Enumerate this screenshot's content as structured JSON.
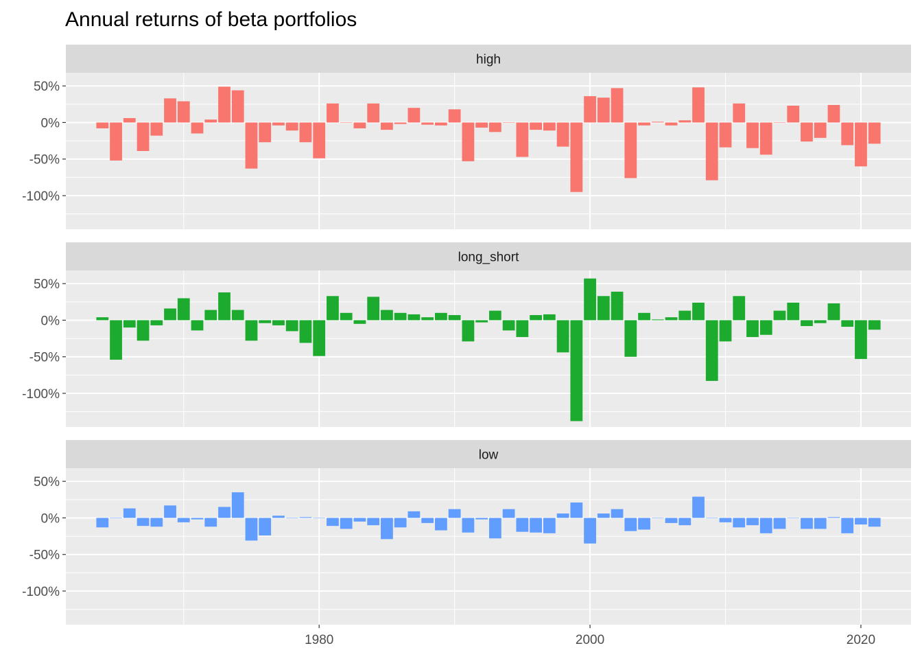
{
  "chart_data": {
    "type": "bar",
    "title": "Annual returns of beta portfolios",
    "xlabel": "",
    "ylabel": "",
    "facet_layout": "vertical",
    "grid": true,
    "legend": "none",
    "xlim": [
      1961.3,
      2023.7
    ],
    "ylim": [
      -1.46,
      0.68
    ],
    "x_ticks": [
      1980,
      2000,
      2020
    ],
    "x_tick_labels": [
      "1980",
      "2000",
      "2020"
    ],
    "y_ticks": [
      0.5,
      0,
      -0.5,
      -1.0
    ],
    "y_tick_labels": [
      "50%",
      "0%",
      "-50%",
      "-100%"
    ],
    "x": [
      1964,
      1965,
      1966,
      1967,
      1968,
      1969,
      1970,
      1971,
      1972,
      1973,
      1974,
      1975,
      1976,
      1977,
      1978,
      1979,
      1980,
      1981,
      1982,
      1983,
      1984,
      1985,
      1986,
      1987,
      1988,
      1989,
      1990,
      1991,
      1992,
      1993,
      1994,
      1995,
      1996,
      1997,
      1998,
      1999,
      2000,
      2001,
      2002,
      2003,
      2004,
      2005,
      2006,
      2007,
      2008,
      2009,
      2010,
      2011,
      2012,
      2013,
      2014,
      2015,
      2016,
      2017,
      2018,
      2019,
      2020,
      2021
    ],
    "series": [
      {
        "name": "high",
        "color": "#F8766D",
        "values": [
          -0.08,
          -0.52,
          0.06,
          -0.39,
          -0.18,
          0.33,
          0.29,
          -0.15,
          0.04,
          0.49,
          0.44,
          -0.63,
          -0.27,
          -0.04,
          -0.11,
          -0.27,
          -0.49,
          0.26,
          0.0,
          -0.08,
          0.26,
          -0.1,
          -0.02,
          0.2,
          -0.03,
          -0.04,
          0.18,
          -0.53,
          -0.07,
          -0.13,
          0.0,
          -0.47,
          -0.1,
          -0.11,
          -0.33,
          -0.95,
          0.36,
          0.34,
          0.47,
          -0.76,
          -0.04,
          0.01,
          -0.04,
          0.03,
          0.48,
          -0.79,
          -0.34,
          0.26,
          -0.35,
          -0.44,
          0.0,
          0.23,
          -0.26,
          -0.21,
          0.24,
          -0.31,
          -0.6,
          -0.29
        ]
      },
      {
        "name": "long_short",
        "color": "#1CAB2E",
        "values": [
          0.04,
          -0.54,
          -0.1,
          -0.28,
          -0.07,
          0.16,
          0.3,
          -0.14,
          0.14,
          0.38,
          0.14,
          -0.28,
          -0.04,
          -0.07,
          -0.15,
          -0.31,
          -0.49,
          0.33,
          0.1,
          -0.05,
          0.32,
          0.14,
          0.1,
          0.08,
          0.04,
          0.1,
          0.07,
          -0.29,
          -0.03,
          0.13,
          -0.14,
          -0.23,
          0.07,
          0.08,
          -0.44,
          -1.38,
          0.57,
          0.33,
          0.39,
          -0.5,
          0.1,
          0.01,
          0.04,
          0.13,
          0.24,
          -0.83,
          -0.29,
          0.33,
          -0.23,
          -0.2,
          0.13,
          0.24,
          -0.08,
          -0.04,
          0.23,
          -0.09,
          -0.53,
          -0.13
        ]
      },
      {
        "name": "low",
        "color": "#619CFF",
        "values": [
          -0.13,
          0.0,
          0.13,
          -0.11,
          -0.12,
          0.17,
          -0.06,
          -0.02,
          -0.12,
          0.15,
          0.35,
          -0.31,
          -0.24,
          0.03,
          0.0,
          0.01,
          0.0,
          -0.11,
          -0.15,
          -0.05,
          -0.1,
          -0.29,
          -0.13,
          0.09,
          -0.07,
          -0.17,
          0.12,
          -0.2,
          -0.02,
          -0.28,
          0.12,
          -0.19,
          -0.2,
          -0.21,
          0.06,
          0.21,
          -0.35,
          0.06,
          0.12,
          -0.18,
          -0.16,
          0.0,
          -0.07,
          -0.1,
          0.29,
          0.0,
          -0.06,
          -0.13,
          -0.1,
          -0.21,
          -0.15,
          0.0,
          -0.15,
          -0.15,
          0.01,
          -0.21,
          -0.09,
          -0.12
        ]
      }
    ]
  }
}
